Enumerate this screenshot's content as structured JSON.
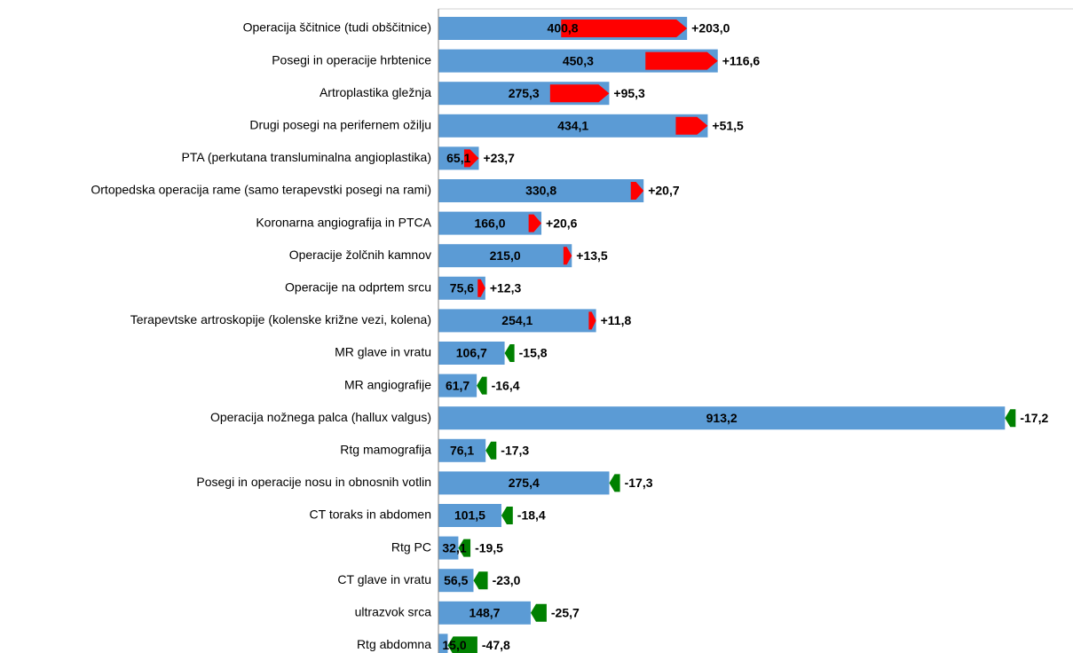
{
  "chart_data": {
    "type": "bar-change",
    "categories": [
      "Operacija ščitnice (tudi obščitnice)",
      "Posegi in operacije hrbtenice",
      "Artroplastika gležnja",
      "Drugi posegi na perifernem ožilju",
      "PTA (perkutana transluminalna angioplastika)",
      "Ortopedska operacija rame (samo terapevstki posegi na rami)",
      "Koronarna angiografija in PTCA",
      "Operacije žolčnih kamnov",
      "Operacije na odprtem srcu",
      "Terapevtske artroskopije (kolenske križne vezi, kolena)",
      "MR glave in vratu",
      "MR angiografije",
      "Operacija nožnega palca (hallux valgus)",
      "Rtg mamografija",
      "Posegi in operacije nosu in obnosnih votlin",
      "CT toraks in abdomen",
      "Rtg PC",
      "CT glave in vratu",
      "ultrazvok srca",
      "Rtg abdomna"
    ],
    "values": [
      400.8,
      450.3,
      275.3,
      434.1,
      65.1,
      330.8,
      166.0,
      215.0,
      75.6,
      254.1,
      106.7,
      61.7,
      913.2,
      76.1,
      275.4,
      101.5,
      32.1,
      56.5,
      148.7,
      15.0
    ],
    "value_labels": [
      "400,8",
      "450,3",
      "275,3",
      "434,1",
      "65,1",
      "330,8",
      "166,0",
      "215,0",
      "75,6",
      "254,1",
      "106,7",
      "61,7",
      "913,2",
      "76,1",
      "275,4",
      "101,5",
      "32,1",
      "56,5",
      "148,7",
      "15,0"
    ],
    "changes": [
      203.0,
      116.6,
      95.3,
      51.5,
      23.7,
      20.7,
      20.6,
      13.5,
      12.3,
      11.8,
      -15.8,
      -16.4,
      -17.2,
      -17.3,
      -17.3,
      -18.4,
      -19.5,
      -23.0,
      -25.7,
      -47.8
    ],
    "change_labels": [
      "+203,0",
      "+116,6",
      "+95,3",
      "+51,5",
      "+23,7",
      "+20,7",
      "+20,6",
      "+13,5",
      "+12,3",
      "+11,8",
      "-15,8",
      "-16,4",
      "-17,2",
      "-17,3",
      "-17,3",
      "-18,4",
      "-19,5",
      "-23,0",
      "-25,7",
      "-47,8"
    ],
    "color": "#5b9bd5",
    "increase_color": "#ff0000",
    "decrease_color": "#008000",
    "xlim": [
      0,
      1000
    ]
  }
}
